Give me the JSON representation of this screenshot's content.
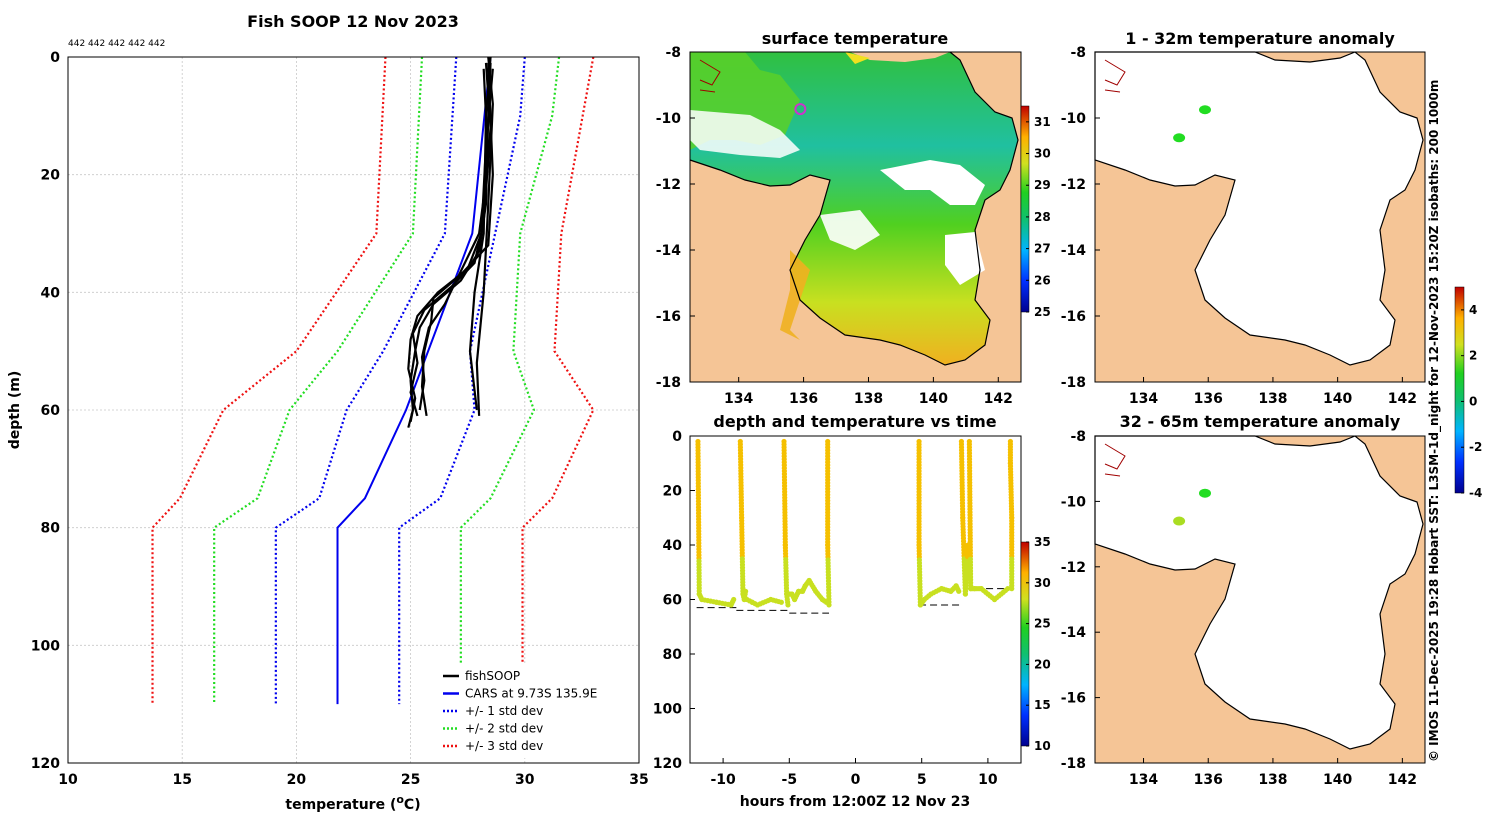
{
  "chart_data": [
    {
      "id": "profile",
      "type": "line",
      "title": "Fish SOOP 12 Nov 2023",
      "xlabel": "temperature (",
      "xlabel_unit": "C)",
      "xlabel_sup": "o",
      "ylabel": "depth (m)",
      "xlim": [
        10,
        35
      ],
      "ylim": [
        120,
        0
      ],
      "xticks": [
        10,
        15,
        20,
        25,
        30,
        35
      ],
      "yticks": [
        0,
        20,
        40,
        60,
        80,
        100,
        120
      ],
      "profile_ids": "442 442 442 442 442",
      "legend_position": "bottom-right",
      "legend": [
        {
          "label": "fishSOOP",
          "color": "#000000",
          "style": "solid"
        },
        {
          "label": "CARS at 9.73S 135.9E",
          "color": "#0000ee",
          "style": "solid"
        },
        {
          "label": "+/- 1 std dev",
          "color": "#0000ee",
          "style": "dotted"
        },
        {
          "label": "+/- 2 std dev",
          "color": "#22dd22",
          "style": "dotted"
        },
        {
          "label": "+/- 3 std dev",
          "color": "#ee1111",
          "style": "dotted"
        }
      ],
      "cars": {
        "depth": [
          0,
          30,
          60,
          75,
          80,
          110
        ],
        "temp": [
          28.5,
          27.7,
          24.8,
          23.0,
          21.8,
          21.8
        ]
      },
      "std_lines": [
        {
          "name": "-3 std",
          "color": "#ee1111",
          "depth": [
            0,
            30,
            50,
            60,
            75,
            80,
            110
          ],
          "temp": [
            23.9,
            23.5,
            20.0,
            16.8,
            14.9,
            13.7,
            13.7
          ]
        },
        {
          "name": "-2 std",
          "color": "#22dd22",
          "depth": [
            0,
            30,
            50,
            60,
            75,
            80,
            110
          ],
          "temp": [
            25.5,
            25.1,
            21.8,
            19.7,
            18.3,
            16.4,
            16.4
          ]
        },
        {
          "name": "-1 std",
          "color": "#0000ee",
          "depth": [
            0,
            30,
            50,
            60,
            75,
            80,
            110
          ],
          "temp": [
            27.0,
            26.5,
            23.8,
            22.2,
            21.0,
            19.1,
            19.1
          ]
        },
        {
          "name": "+1 std",
          "color": "#0000ee",
          "depth": [
            0,
            10,
            30,
            50,
            60,
            75,
            80,
            110
          ],
          "temp": [
            30.0,
            29.8,
            28.7,
            27.6,
            27.8,
            26.3,
            24.5,
            24.5
          ]
        },
        {
          "name": "+2 std",
          "color": "#22dd22",
          "depth": [
            0,
            10,
            30,
            50,
            60,
            75,
            80,
            110
          ],
          "temp": [
            31.5,
            31.2,
            29.8,
            29.5,
            30.4,
            28.5,
            27.2,
            27.2
          ]
        },
        {
          "name": "+3 std",
          "color": "#ee1111",
          "depth": [
            0,
            30,
            50,
            60,
            75,
            80,
            110
          ],
          "temp": [
            33.0,
            31.6,
            31.3,
            33.0,
            31.2,
            29.9,
            29.9
          ]
        }
      ],
      "fish_profiles": [
        {
          "depth": [
            1,
            10,
            25,
            33,
            38,
            42,
            46,
            50,
            55,
            60,
            63
          ],
          "temp": [
            28.5,
            28.4,
            28.3,
            28.0,
            27.2,
            26.0,
            25.4,
            25.2,
            25.0,
            25.1,
            24.9
          ]
        },
        {
          "depth": [
            1,
            12,
            28,
            35,
            39,
            43,
            47,
            52,
            57,
            61
          ],
          "temp": [
            28.3,
            28.5,
            28.2,
            27.8,
            26.8,
            25.6,
            25.1,
            25.3,
            25.0,
            25.3
          ]
        },
        {
          "depth": [
            2,
            15,
            30,
            36,
            40,
            44,
            48,
            53,
            58,
            62
          ],
          "temp": [
            28.6,
            28.3,
            28.1,
            27.5,
            26.2,
            25.3,
            25.0,
            24.9,
            25.2,
            25.0
          ]
        },
        {
          "depth": [
            1,
            20,
            32,
            37,
            41,
            45,
            50,
            56,
            61
          ],
          "temp": [
            28.4,
            28.6,
            28.4,
            27.2,
            26.0,
            25.9,
            25.6,
            25.5,
            25.7
          ]
        },
        {
          "depth": [
            2,
            18,
            30,
            38,
            42,
            46,
            51,
            55,
            60
          ],
          "temp": [
            28.2,
            28.4,
            28.0,
            27.0,
            26.5,
            25.8,
            25.5,
            25.6,
            25.4
          ]
        },
        {
          "depth": [
            0,
            10,
            30,
            40,
            50,
            60
          ],
          "temp": [
            28.5,
            28.3,
            28.2,
            27.8,
            27.6,
            27.9
          ]
        },
        {
          "depth": [
            0,
            8,
            25,
            40,
            52,
            61
          ],
          "temp": [
            28.4,
            28.6,
            28.4,
            28.2,
            27.9,
            28.0
          ]
        }
      ]
    },
    {
      "id": "sst",
      "type": "heatmap",
      "title": "surface temperature",
      "xlim": [
        132.5,
        142.7
      ],
      "ylim": [
        -18,
        -8
      ],
      "xticks": [
        134,
        136,
        138,
        140,
        142
      ],
      "yticks": [
        -8,
        -10,
        -12,
        -14,
        -16,
        -18
      ],
      "colorbar": {
        "min": 25,
        "max": 31.5,
        "ticks": [
          25,
          26,
          27,
          28,
          29,
          30,
          31
        ]
      },
      "markers": [
        {
          "lon": 135.9,
          "lat": -9.73,
          "color": "#cc33cc"
        }
      ]
    },
    {
      "id": "timeseries",
      "type": "scatter",
      "title": "depth and temperature vs time",
      "xlabel": "hours from 12:00Z 12 Nov 23",
      "xlim": [
        -12.5,
        12.5
      ],
      "ylim": [
        120,
        0
      ],
      "xticks": [
        -10,
        -5,
        0,
        5,
        10
      ],
      "yticks": [
        0,
        20,
        40,
        60,
        80,
        100,
        120
      ],
      "colorbar": {
        "min": 10,
        "max": 35,
        "ticks": [
          10,
          15,
          20,
          25,
          30,
          35
        ]
      },
      "segments": [
        {
          "hours": [
            -11.9,
            -11.8,
            -11.6,
            -10.5,
            -9.4,
            -9.2
          ],
          "depth": [
            2,
            58,
            60,
            61,
            62,
            60
          ]
        },
        {
          "hours": [
            -8.7,
            -8.6,
            -8.5,
            -8.4,
            -8.3
          ],
          "depth": [
            2,
            30,
            58,
            60,
            57
          ]
        },
        {
          "hours": [
            -8.2,
            -7.8,
            -7.4,
            -6.4,
            -5.6
          ],
          "depth": [
            60,
            61,
            62,
            60,
            61
          ]
        },
        {
          "hours": [
            -5.4,
            -5.3,
            -5.2,
            -5.1
          ],
          "depth": [
            2,
            40,
            58,
            62
          ]
        },
        {
          "hours": [
            -5.0,
            -4.8,
            -4.6,
            -4.3,
            -4.0,
            -3.8,
            -3.5,
            -3.0,
            -2.5,
            -2.2
          ],
          "depth": [
            58,
            58,
            60,
            57,
            57,
            55,
            53,
            57,
            60,
            61
          ]
        },
        {
          "hours": [
            -2.1,
            -2.1,
            -2.0
          ],
          "depth": [
            2,
            40,
            62
          ]
        },
        {
          "hours": [
            4.8,
            4.8,
            4.9,
            5.2,
            5.7,
            6.5,
            7.2,
            7.6,
            7.8
          ],
          "depth": [
            2,
            40,
            62,
            60,
            58,
            56,
            57,
            55,
            57
          ]
        },
        {
          "hours": [
            8.0,
            8.1,
            8.3,
            8.5
          ],
          "depth": [
            2,
            30,
            58,
            40
          ]
        },
        {
          "hours": [
            8.6,
            8.7,
            9.0,
            9.5,
            10.0,
            10.5,
            11.0,
            11.5
          ],
          "depth": [
            2,
            56,
            56,
            56,
            58,
            60,
            58,
            56
          ]
        },
        {
          "hours": [
            11.7,
            11.7,
            11.8,
            11.8
          ],
          "depth": [
            2,
            10,
            30,
            56
          ]
        }
      ],
      "bottom_dashes": [
        {
          "hours": [
            -12.0,
            -9.0
          ],
          "depth": 63
        },
        {
          "hours": [
            -9.0,
            -5.0
          ],
          "depth": 64
        },
        {
          "hours": [
            -5.0,
            -2.0
          ],
          "depth": 65
        },
        {
          "hours": [
            4.8,
            8.0
          ],
          "depth": 62
        },
        {
          "hours": [
            8.2,
            11.7
          ],
          "depth": 56
        }
      ]
    },
    {
      "id": "anom1",
      "type": "heatmap",
      "title": "1 - 32m temperature anomaly",
      "xlim": [
        132.5,
        142.7
      ],
      "ylim": [
        -18,
        -8
      ],
      "xticks": [
        134,
        136,
        138,
        140,
        142
      ],
      "yticks": [
        -8,
        -10,
        -12,
        -14,
        -16,
        -18
      ],
      "markers": [
        {
          "lon": 135.9,
          "lat": -9.75,
          "color": "#22dd22"
        },
        {
          "lon": 135.1,
          "lat": -10.6,
          "color": "#22dd22"
        }
      ]
    },
    {
      "id": "anom2",
      "type": "heatmap",
      "title": "32 - 65m temperature anomaly",
      "xlim": [
        132.5,
        142.7
      ],
      "ylim": [
        -18,
        -8
      ],
      "xticks": [
        134,
        136,
        138,
        140,
        142
      ],
      "yticks": [
        -8,
        -10,
        -12,
        -14,
        -16,
        -18
      ],
      "colorbar": {
        "min": -4,
        "max": 5,
        "ticks": [
          -4,
          -2,
          0,
          2,
          4
        ]
      },
      "markers": [
        {
          "lon": 135.9,
          "lat": -9.75,
          "color": "#22dd22"
        },
        {
          "lon": 135.1,
          "lat": -10.6,
          "color": "#aadd22"
        }
      ]
    }
  ],
  "side_note": "© IMOS 11-Dec-2025 19:28 Hobart SST: L3SM-1d_night for 12-Nov-2023 15:20Z isobaths: 200  1000m"
}
